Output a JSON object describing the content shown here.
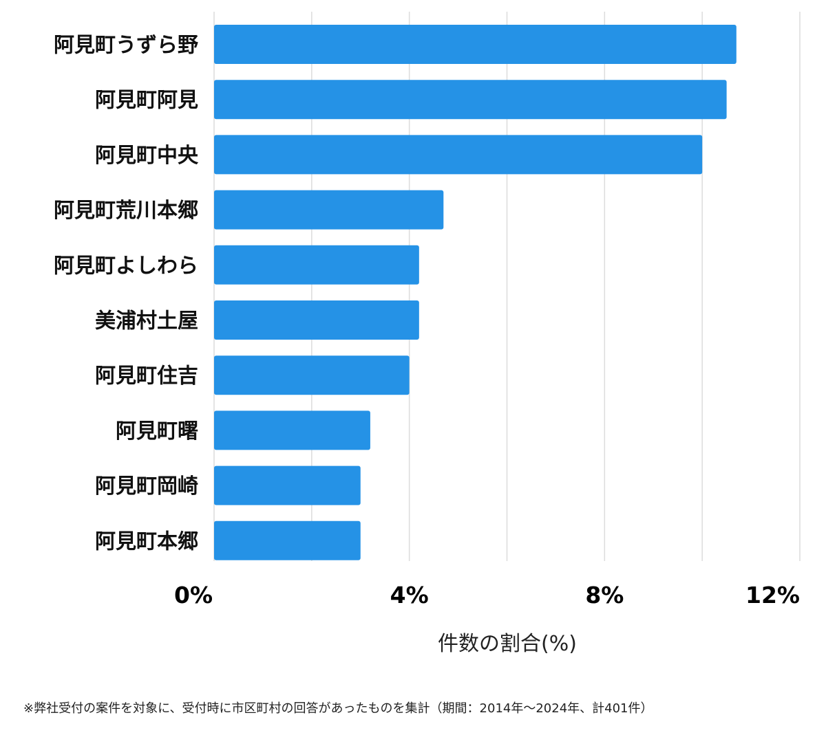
{
  "chart_data": {
    "type": "bar",
    "orientation": "horizontal",
    "categories": [
      "阿見町うずら野",
      "阿見町阿見",
      "阿見町中央",
      "阿見町荒川本郷",
      "阿見町よしわら",
      "美浦村土屋",
      "阿見町住吉",
      "阿見町曙",
      "阿見町岡崎",
      "阿見町本郷"
    ],
    "values": [
      10.7,
      10.5,
      10.0,
      4.7,
      4.2,
      4.2,
      4.0,
      3.2,
      3.0,
      3.0
    ],
    "xlabel": "件数の割合(%)",
    "xlim": [
      0,
      12
    ],
    "xticks": [
      0,
      4,
      8,
      12
    ],
    "tick_labels": [
      "0%",
      "4%",
      "8%",
      "12%"
    ],
    "gridlines": [
      0,
      2,
      4,
      6,
      8,
      10,
      12
    ],
    "bar_color": "#2592e6"
  },
  "footnote": "※弊社受付の案件を対象に、受付時に市区町村の回答があったものを集計（期間：2014年～2024年、計401件）"
}
